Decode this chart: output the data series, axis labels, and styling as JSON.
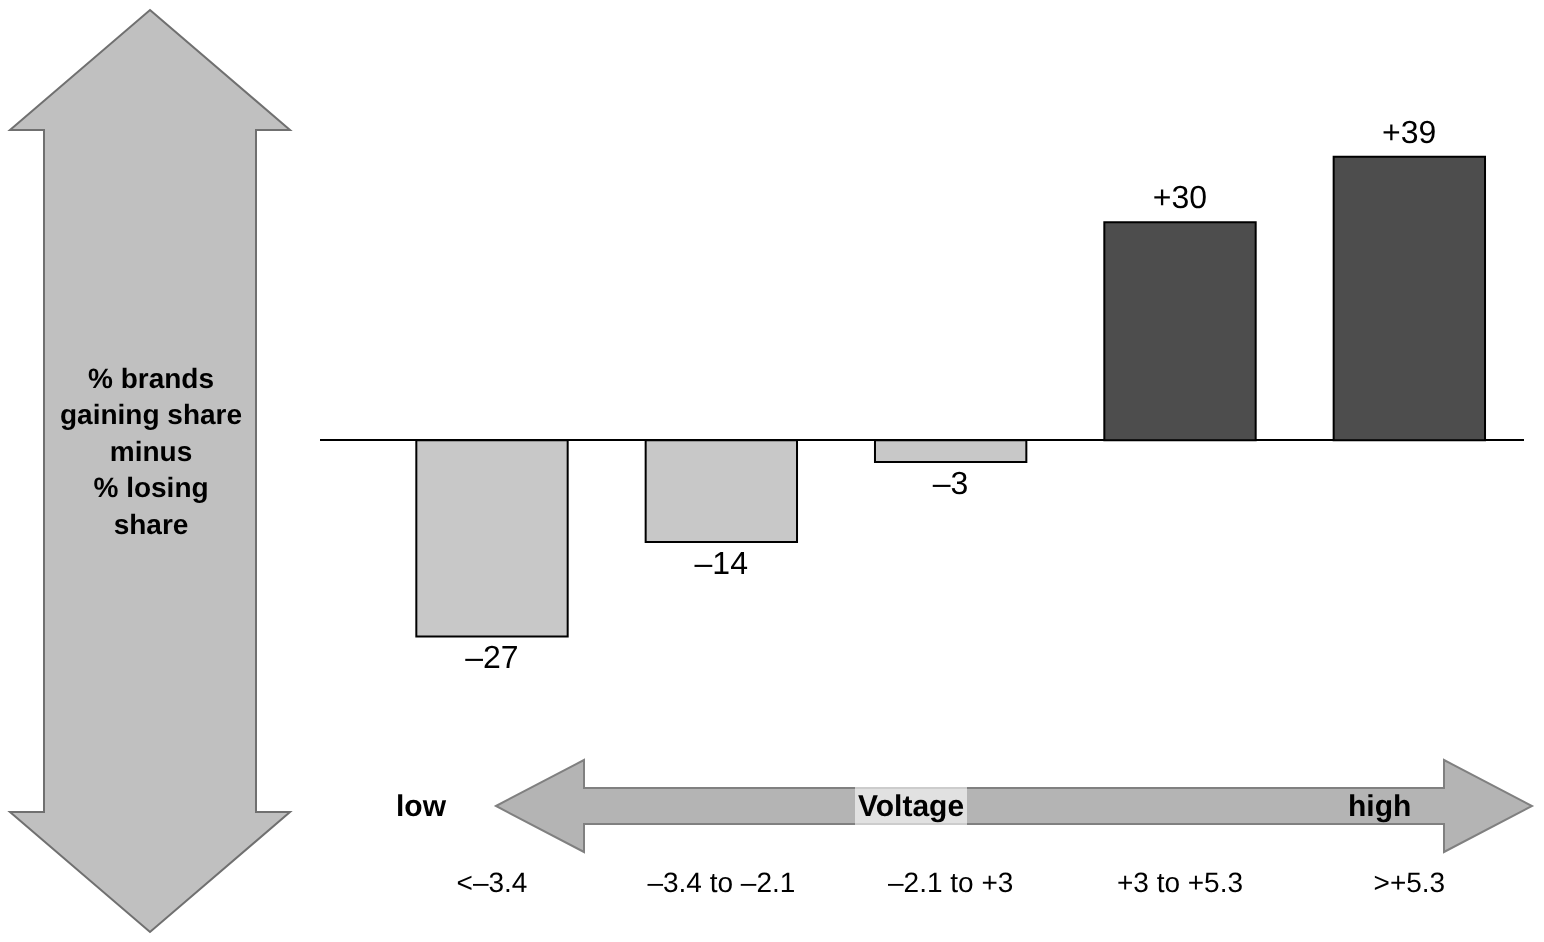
{
  "chart_data": {
    "type": "bar",
    "ylabel": "% brands gaining share minus % losing share",
    "categories": [
      "<–3.4",
      "–3.4 to –2.1",
      "–2.1 to +3",
      "+3 to +5.3",
      ">+5.3"
    ],
    "values": [
      -27,
      -14,
      -3,
      30,
      39
    ],
    "value_labels": [
      "–27",
      "–14",
      "–3",
      "+30",
      "+39"
    ],
    "colors": [
      "#c8c8c8",
      "#c8c8c8",
      "#c8c8c8",
      "#4d4d4d",
      "#4d4d4d"
    ],
    "annotations": [
      "low",
      "Voltage",
      "high"
    ]
  }
}
